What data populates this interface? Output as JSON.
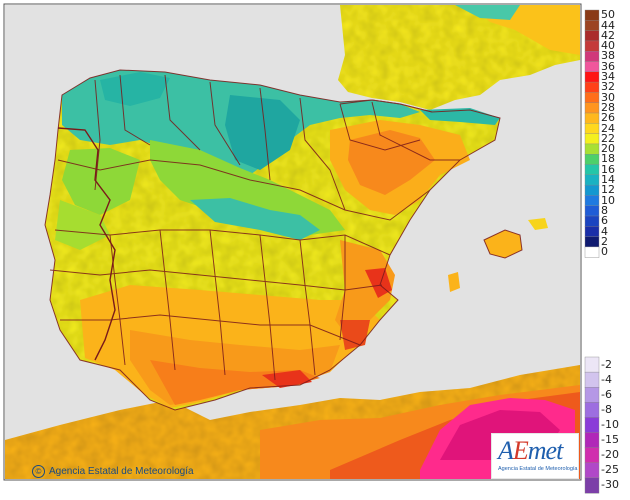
{
  "map": {
    "colors": {
      "sea": "#e2e2e2",
      "land_outside": "#f2f2f2",
      "border": "#7a1a1a",
      "cool_teal": "#2cb8a6",
      "green": "#8ed838",
      "yellow": "#f6ee1c",
      "orange": "#fbb31a",
      "deep_orange": "#f77e1a",
      "hot_red": "#e8331a",
      "pink_hot": "#ff3aa0"
    },
    "copyright": "Agencia Estatal de Meteorología",
    "logo": {
      "word_a": "A",
      "word_e": "E",
      "word_rest": "met",
      "subtitle": "Agencia Estatal de Meteorología"
    }
  },
  "legend": {
    "values": [
      "50",
      "44",
      "42",
      "40",
      "38",
      "36",
      "34",
      "32",
      "30",
      "28",
      "26",
      "24",
      "22",
      "20",
      "18",
      "16",
      "14",
      "12",
      "10",
      "8",
      "6",
      "4",
      "2",
      "0",
      "-2",
      "-4",
      "-6",
      "-8",
      "-10",
      "-15",
      "-20",
      "-25",
      "-30"
    ],
    "colors": [
      "#8a3a16",
      "#9c4422",
      "#aa2b2b",
      "#c43a3a",
      "#d0397a",
      "#f0569c",
      "#ff1414",
      "#ff4018",
      "#ff6e1a",
      "#ff9520",
      "#ffb81e",
      "#ffd81e",
      "#f4f01e",
      "#a8e034",
      "#4dd06a",
      "#24c6a8",
      "#1ab2c2",
      "#1498d0",
      "#1f7ae0",
      "#1f5cd6",
      "#1b44c0",
      "#1a2ea8",
      "#0f1a70",
      "#ffffff",
      "#ece6f6",
      "#d2c4ee",
      "#b598e6",
      "#9d6ee0",
      "#8a3cd8",
      "#b028b8",
      "#d02eae",
      "#b048c8",
      "#7c3fa8"
    ]
  }
}
